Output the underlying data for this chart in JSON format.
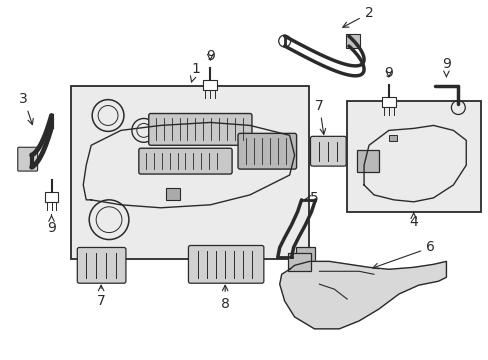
{
  "background_color": "#ffffff",
  "line_color": "#2a2a2a",
  "label_color": "#000000",
  "font_size": 10
}
